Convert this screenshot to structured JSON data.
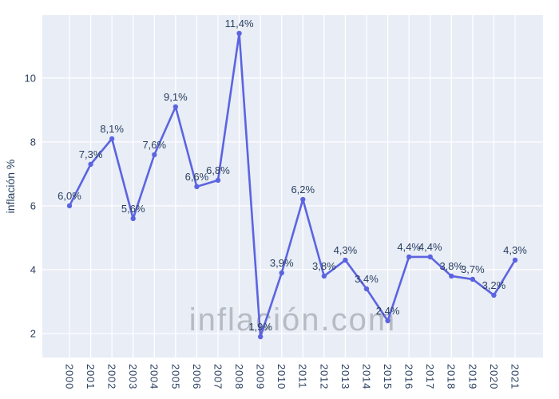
{
  "colors": {
    "page_background": "#ffffff",
    "plot_background": "#e8edf6",
    "grid": "#ffffff",
    "line": "#5c64e0",
    "marker": "#5c64e0",
    "text": "#2a3f5f",
    "watermark": "#b7bbc3"
  },
  "watermark": {
    "text": "inflación.com"
  },
  "chart_data": {
    "type": "line",
    "title": "",
    "xlabel": "",
    "ylabel": "inflación %",
    "categories": [
      "2000",
      "2001",
      "2002",
      "2003",
      "2004",
      "2005",
      "2006",
      "2007",
      "2008",
      "2009",
      "2010",
      "2011",
      "2012",
      "2013",
      "2014",
      "2015",
      "2016",
      "2017",
      "2018",
      "2019",
      "2020",
      "2021"
    ],
    "values": [
      6.0,
      7.3,
      8.1,
      5.6,
      7.6,
      9.1,
      6.6,
      6.8,
      11.4,
      1.9,
      3.9,
      6.2,
      3.8,
      4.3,
      3.4,
      2.4,
      4.4,
      4.4,
      3.8,
      3.7,
      3.2,
      4.3
    ],
    "point_labels": [
      "6,0%",
      "7,3%",
      "8,1%",
      "5,6%",
      "7,6%",
      "9,1%",
      "6,6%",
      "6,8%",
      "11,4%",
      "1,9%",
      "3,9%",
      "6,2%",
      "3,8%",
      "4,3%",
      "3,4%",
      "2,4%",
      "4,4%",
      "4,4%",
      "3,8%",
      "3,7%",
      "3,2%",
      "4,3%"
    ],
    "yticks": [
      2,
      4,
      6,
      8,
      10
    ],
    "ylim": [
      1.25,
      11.97
    ],
    "grid": true,
    "legend": "none",
    "marker_shape": "circle"
  }
}
